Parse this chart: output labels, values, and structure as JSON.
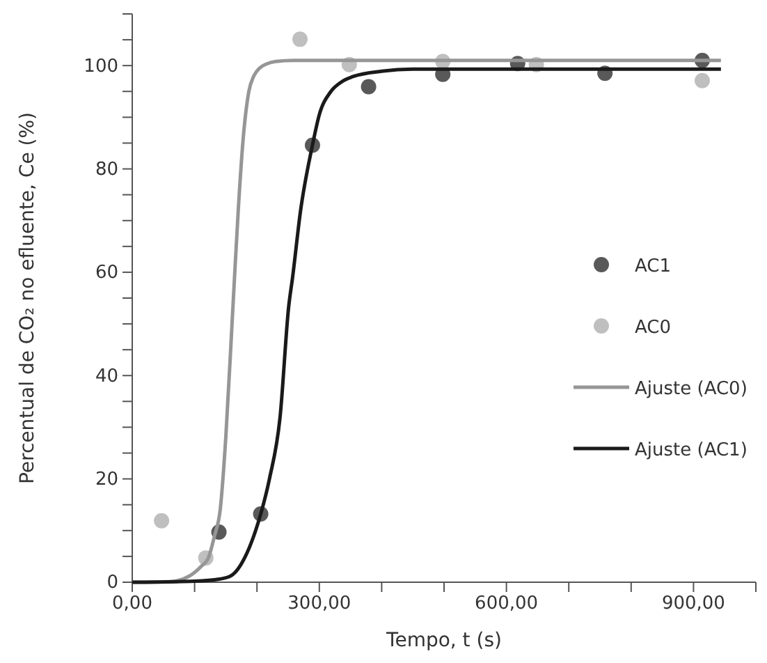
{
  "chart_data": {
    "type": "scatter",
    "xlabel": "Tempo, t (s)",
    "ylabel": "Percentual de CO₂ no efluente, Ce (%)",
    "xlim": [
      0,
      1000
    ],
    "ylim": [
      0,
      110
    ],
    "xticks": [
      {
        "value": 0,
        "label": "0,00"
      },
      {
        "value": 100,
        "label": null
      },
      {
        "value": 200,
        "label": null
      },
      {
        "value": 300,
        "label": "300,00"
      },
      {
        "value": 400,
        "label": null
      },
      {
        "value": 500,
        "label": null
      },
      {
        "value": 600,
        "label": "600,00"
      },
      {
        "value": 700,
        "label": null
      },
      {
        "value": 800,
        "label": null
      },
      {
        "value": 900,
        "label": "900,00"
      },
      {
        "value": 1000,
        "label": null
      }
    ],
    "yticks": [
      0,
      {
        "value": 5,
        "label": null
      },
      {
        "value": 10,
        "label": null
      },
      {
        "value": 15,
        "label": null
      },
      20,
      {
        "value": 25,
        "label": null
      },
      {
        "value": 30,
        "label": null
      },
      {
        "value": 35,
        "label": null
      },
      40,
      {
        "value": 45,
        "label": null
      },
      {
        "value": 50,
        "label": null
      },
      {
        "value": 55,
        "label": null
      },
      60,
      {
        "value": 65,
        "label": null
      },
      {
        "value": 70,
        "label": null
      },
      {
        "value": 75,
        "label": null
      },
      80,
      {
        "value": 85,
        "label": null
      },
      {
        "value": 90,
        "label": null
      },
      {
        "value": 95,
        "label": null
      },
      100,
      {
        "value": 105,
        "label": null
      },
      {
        "value": 110,
        "label": null
      }
    ],
    "grid": false,
    "legend": "right",
    "series": [
      {
        "name": "AC1",
        "marker": "circle",
        "color": "#595959",
        "x": [
          139,
          206,
          289,
          379,
          498,
          618,
          758,
          914
        ],
        "values": [
          9.7,
          13.2,
          84.6,
          95.9,
          98.3,
          100.4,
          98.5,
          101
        ]
      },
      {
        "name": "AC0",
        "marker": "circle",
        "color": "#bfbfbf",
        "x": [
          47,
          118,
          269,
          348,
          498,
          648,
          914
        ],
        "values": [
          11.9,
          4.7,
          105.1,
          100.2,
          100.8,
          100.2,
          97.1
        ]
      },
      {
        "name": "Ajuste (AC0)",
        "type": "line",
        "marker": "none",
        "color": "#969696",
        "x": [
          0,
          60,
          93,
          110,
          122,
          132,
          141,
          150,
          160,
          164,
          170,
          178,
          187,
          195,
          204,
          215,
          230,
          260,
          350,
          500,
          700,
          944
        ],
        "values": [
          0,
          0.1,
          1.3,
          3,
          4.7,
          9,
          14,
          28,
          50,
          59,
          72,
          86,
          95,
          98,
          99.5,
          100.3,
          100.8,
          101,
          101,
          101,
          101,
          101
        ]
      },
      {
        "name": "Ajuste (AC1)",
        "type": "line",
        "marker": "none",
        "color": "#1a1a1a",
        "x": [
          0,
          100,
          140,
          159,
          181,
          195,
          206,
          220,
          237,
          251,
          257,
          270,
          289,
          300,
          318,
          335,
          352,
          400,
          450,
          600,
          800,
          944
        ],
        "values": [
          0,
          0.2,
          0.6,
          1.3,
          4.9,
          9,
          13.2,
          20,
          31.9,
          53.5,
          58.9,
          72,
          84.6,
          90.5,
          94.9,
          96.8,
          97.8,
          98.9,
          99.3,
          99.3,
          99.3,
          99.3
        ]
      }
    ]
  }
}
